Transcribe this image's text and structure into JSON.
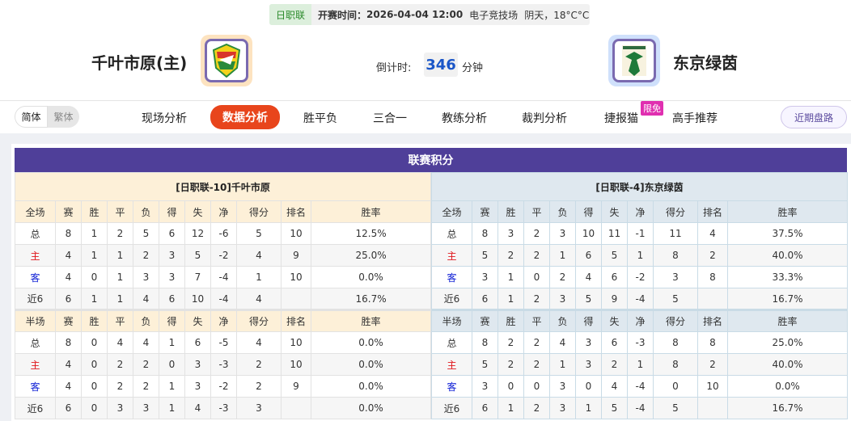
{
  "match": {
    "league": "日职联",
    "time_label": "开赛时间：",
    "time": "2026-04-04 12:00",
    "venue": "电子竞技场",
    "weather": "阴天，18°C°C"
  },
  "home_team": {
    "name": "千叶市原(主)"
  },
  "away_team": {
    "name": "东京绿茵"
  },
  "countdown": {
    "label": "倒计时:",
    "value": "346",
    "unit": "分钟"
  },
  "nav": {
    "lang": [
      "简体",
      "繁体"
    ],
    "tabs": [
      "现场分析",
      "数据分析",
      "胜平负",
      "三合一",
      "教练分析",
      "裁判分析",
      "捷报猫",
      "高手推荐"
    ],
    "active": "数据分析",
    "badge": "限免",
    "recent": "近期盘路"
  },
  "colors": {
    "accent": "#e8451c",
    "header": "#4f3f99",
    "home": "#e0161c",
    "away": "#1222d6"
  },
  "standings": {
    "title": "联赛积分",
    "columns": [
      "赛",
      "胜",
      "平",
      "负",
      "得",
      "失",
      "净",
      "得分",
      "排名",
      "胜率"
    ],
    "left": {
      "caption": "[日职联-10]千叶市原",
      "full": {
        "label": "全场",
        "rows": [
          [
            "总",
            "8",
            "1",
            "2",
            "5",
            "6",
            "12",
            "-6",
            "5",
            "10",
            "12.5%"
          ],
          [
            "主",
            "4",
            "1",
            "1",
            "2",
            "3",
            "5",
            "-2",
            "4",
            "9",
            "25.0%"
          ],
          [
            "客",
            "4",
            "0",
            "1",
            "3",
            "3",
            "7",
            "-4",
            "1",
            "10",
            "0.0%"
          ],
          [
            "近6",
            "6",
            "1",
            "1",
            "4",
            "6",
            "10",
            "-4",
            "4",
            "",
            "16.7%"
          ]
        ]
      },
      "half": {
        "label": "半场",
        "rows": [
          [
            "总",
            "8",
            "0",
            "4",
            "4",
            "1",
            "6",
            "-5",
            "4",
            "10",
            "0.0%"
          ],
          [
            "主",
            "4",
            "0",
            "2",
            "2",
            "0",
            "3",
            "-3",
            "2",
            "10",
            "0.0%"
          ],
          [
            "客",
            "4",
            "0",
            "2",
            "2",
            "1",
            "3",
            "-2",
            "2",
            "9",
            "0.0%"
          ],
          [
            "近6",
            "6",
            "0",
            "3",
            "3",
            "1",
            "4",
            "-3",
            "3",
            "",
            "0.0%"
          ]
        ]
      }
    },
    "right": {
      "caption": "[日职联-4]东京绿茵",
      "full": {
        "label": "全场",
        "rows": [
          [
            "总",
            "8",
            "3",
            "2",
            "3",
            "10",
            "11",
            "-1",
            "11",
            "4",
            "37.5%"
          ],
          [
            "主",
            "5",
            "2",
            "2",
            "1",
            "6",
            "5",
            "1",
            "8",
            "2",
            "40.0%"
          ],
          [
            "客",
            "3",
            "1",
            "0",
            "2",
            "4",
            "6",
            "-2",
            "3",
            "8",
            "33.3%"
          ],
          [
            "近6",
            "6",
            "1",
            "2",
            "3",
            "5",
            "9",
            "-4",
            "5",
            "",
            "16.7%"
          ]
        ]
      },
      "half": {
        "label": "半场",
        "rows": [
          [
            "总",
            "8",
            "2",
            "2",
            "4",
            "3",
            "6",
            "-3",
            "8",
            "8",
            "25.0%"
          ],
          [
            "主",
            "5",
            "2",
            "2",
            "1",
            "3",
            "2",
            "1",
            "8",
            "2",
            "40.0%"
          ],
          [
            "客",
            "3",
            "0",
            "0",
            "3",
            "0",
            "4",
            "-4",
            "0",
            "10",
            "0.0%"
          ],
          [
            "近6",
            "6",
            "1",
            "2",
            "3",
            "1",
            "5",
            "-4",
            "5",
            "",
            "16.7%"
          ]
        ]
      }
    }
  }
}
